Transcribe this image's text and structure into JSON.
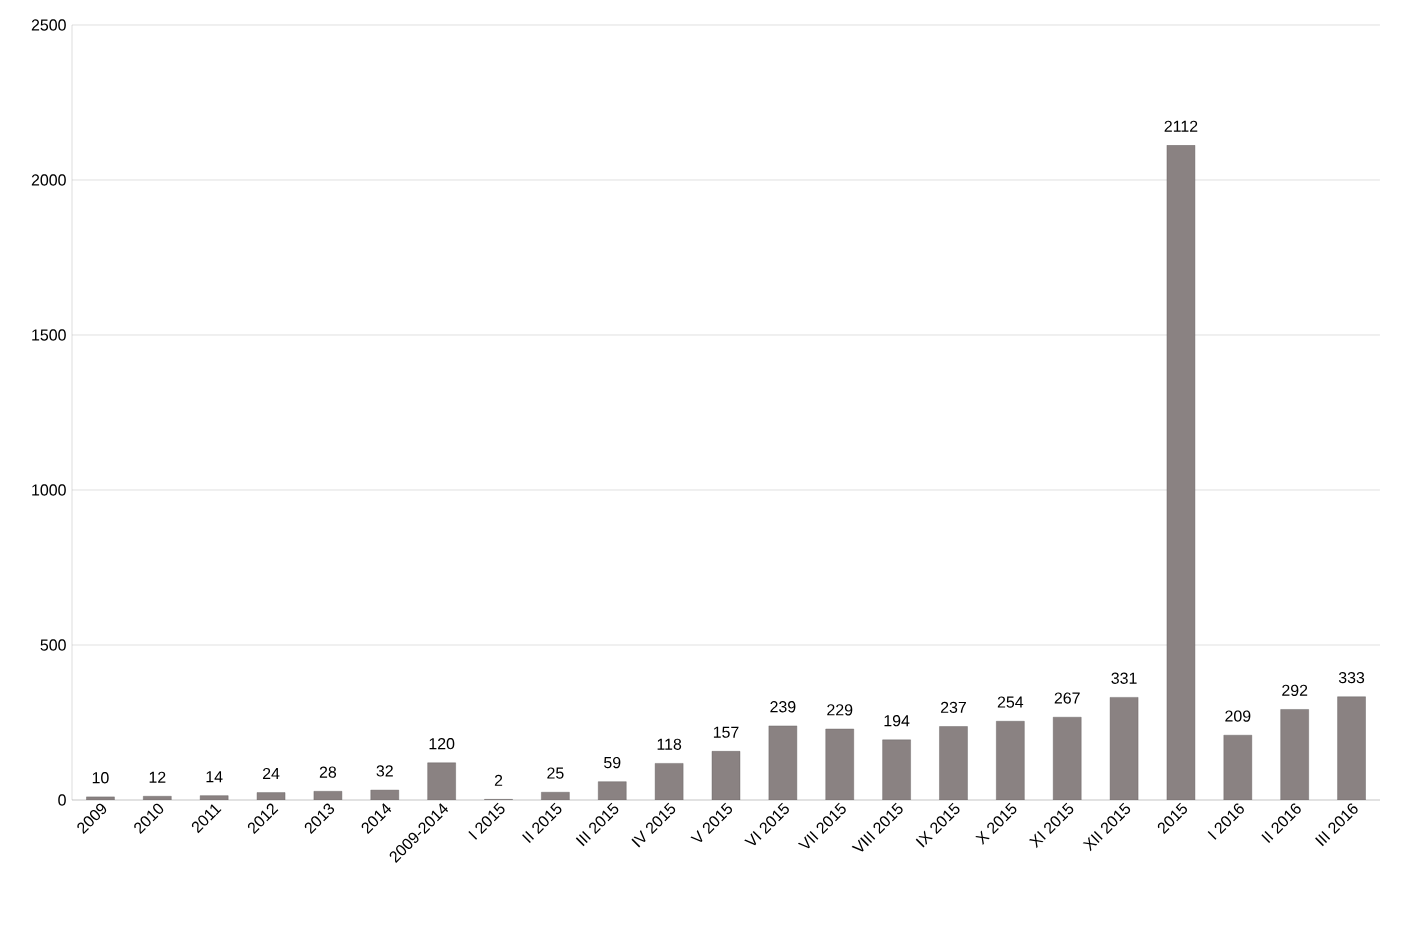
{
  "chart_data": {
    "type": "bar",
    "categories": [
      "2009",
      "2010",
      "2011",
      "2012",
      "2013",
      "2014",
      "2009-2014",
      "I 2015",
      "II 2015",
      "III 2015",
      "IV 2015",
      "V 2015",
      "VI 2015",
      "VII 2015",
      "VIII 2015",
      "IX 2015",
      "X 2015",
      "XI 2015",
      "XII 2015",
      "2015",
      "I 2016",
      "II 2016",
      "III 2016"
    ],
    "values": [
      10,
      12,
      14,
      24,
      28,
      32,
      120,
      2,
      25,
      59,
      118,
      157,
      239,
      229,
      194,
      237,
      254,
      267,
      331,
      2112,
      209,
      292,
      333
    ],
    "color": "#8a8282",
    "ylim": [
      0,
      2500
    ],
    "yticks": [
      0,
      500,
      1000,
      1500,
      2000,
      2500
    ],
    "grid": "y",
    "data_labels": true
  }
}
